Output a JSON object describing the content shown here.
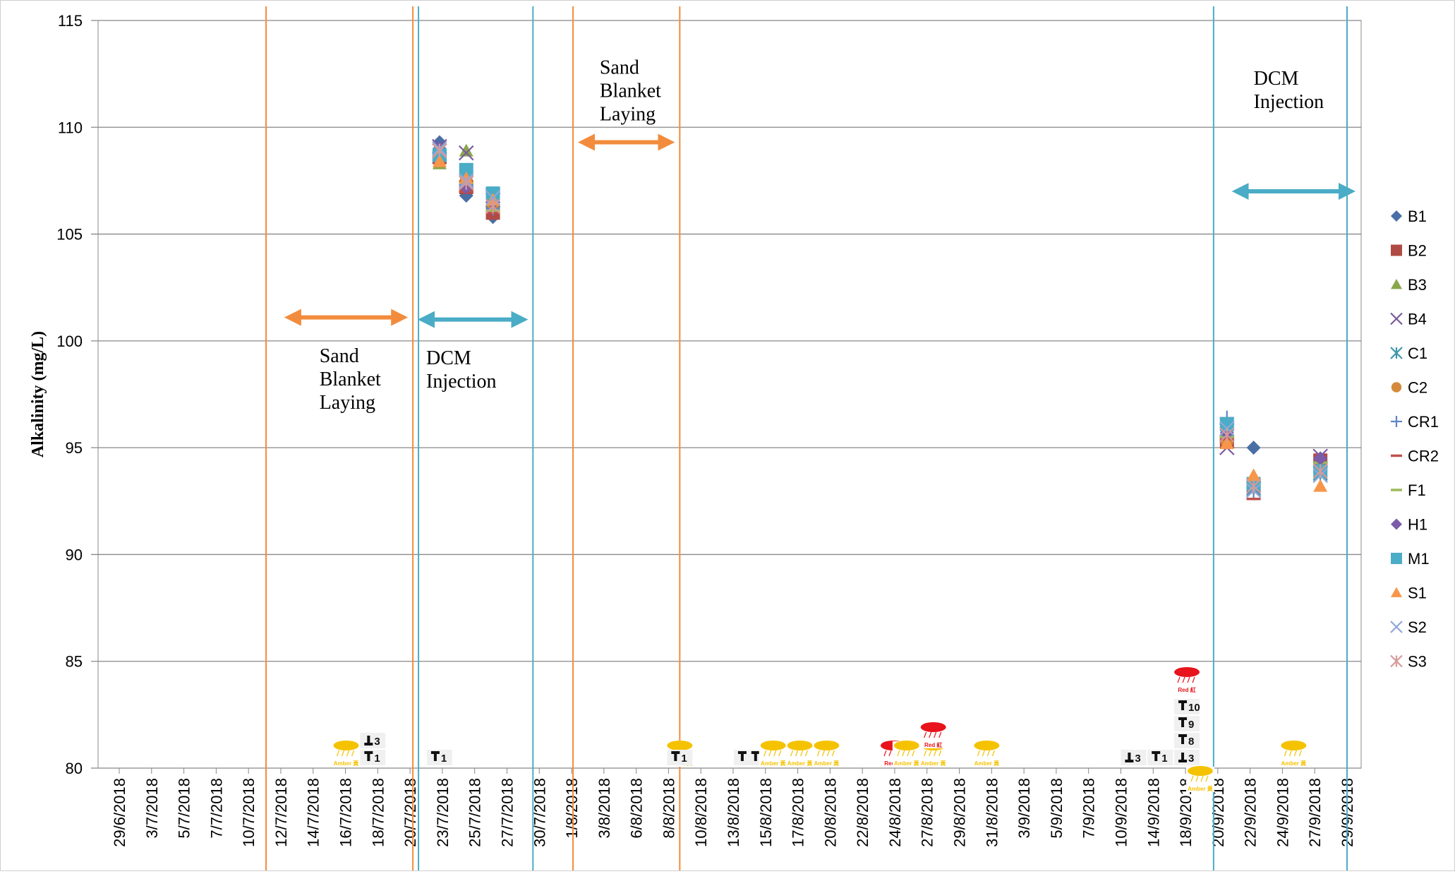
{
  "chart_data": {
    "type": "scatter",
    "ylabel": "Alkalinity (mg/L)",
    "ylim": [
      80,
      115
    ],
    "yticks": [
      80,
      85,
      90,
      95,
      100,
      105,
      110,
      115
    ],
    "x_range_dates": [
      "2018-06-29",
      "2018-09-29"
    ],
    "x_tick_labels": [
      "29/6/2018",
      "3/7/2018",
      "5/7/2018",
      "7/7/2018",
      "10/7/2018",
      "12/7/2018",
      "14/7/2018",
      "16/7/2018",
      "18/7/2018",
      "20/7/2018",
      "23/7/2018",
      "25/7/2018",
      "27/7/2018",
      "30/7/2018",
      "1/8/2018",
      "3/8/2018",
      "6/8/2018",
      "8/8/2018",
      "10/8/2018",
      "13/8/2018",
      "15/8/2018",
      "17/8/2018",
      "20/8/2018",
      "22/8/2018",
      "24/8/2018",
      "27/8/2018",
      "29/8/2018",
      "31/8/2018",
      "3/9/2018",
      "5/9/2018",
      "7/9/2018",
      "10/9/2018",
      "14/9/2018",
      "18/9/2018",
      "20/9/2018",
      "22/9/2018",
      "24/9/2018",
      "27/9/2018",
      "29/9/2018"
    ],
    "grid": true,
    "legend_position": "right",
    "series": [
      {
        "name": "B1",
        "marker": "diamond",
        "color": "#4a6fa5",
        "x": [
          "2018-07-23",
          "2018-07-25",
          "2018-07-27",
          "2018-09-20",
          "2018-09-22",
          "2018-09-27"
        ],
        "y": [
          109.3,
          106.8,
          105.8,
          95.6,
          95.0,
          94.1
        ]
      },
      {
        "name": "B2",
        "marker": "square",
        "color": "#b04a45",
        "x": [
          "2018-07-23",
          "2018-07-25",
          "2018-07-27",
          "2018-09-20",
          "2018-09-22",
          "2018-09-27"
        ],
        "y": [
          108.6,
          107.2,
          106.0,
          95.3,
          93.2,
          94.4
        ]
      },
      {
        "name": "B3",
        "marker": "triangle",
        "color": "#8aa64a",
        "x": [
          "2018-07-23",
          "2018-07-25",
          "2018-07-27",
          "2018-09-20",
          "2018-09-22",
          "2018-09-27"
        ],
        "y": [
          108.3,
          108.9,
          106.3,
          95.6,
          93.3,
          94.1
        ]
      },
      {
        "name": "B4",
        "marker": "x",
        "color": "#7a5a9e",
        "x": [
          "2018-07-23",
          "2018-07-25",
          "2018-07-27",
          "2018-09-20",
          "2018-09-22",
          "2018-09-27"
        ],
        "y": [
          109.1,
          108.8,
          106.8,
          95.0,
          93.0,
          94.6
        ]
      },
      {
        "name": "C1",
        "marker": "asterisk",
        "color": "#3f97ab",
        "x": [
          "2018-07-23",
          "2018-07-25",
          "2018-07-27",
          "2018-09-20",
          "2018-09-22",
          "2018-09-27"
        ],
        "y": [
          108.9,
          107.4,
          106.6,
          95.8,
          93.1,
          93.8
        ]
      },
      {
        "name": "C2",
        "marker": "circle",
        "color": "#d48a3c",
        "x": [
          "2018-07-23",
          "2018-07-25",
          "2018-07-27",
          "2018-09-20",
          "2018-09-22",
          "2018-09-27"
        ],
        "y": [
          108.5,
          107.6,
          106.4,
          95.3,
          93.3,
          94.0
        ]
      },
      {
        "name": "CR1",
        "marker": "plus",
        "color": "#5b86c4",
        "x": [
          "2018-07-23",
          "2018-07-25",
          "2018-07-27",
          "2018-09-20",
          "2018-09-22",
          "2018-09-27"
        ],
        "y": [
          108.8,
          107.3,
          106.2,
          96.4,
          92.9,
          93.9
        ]
      },
      {
        "name": "CR2",
        "marker": "dash",
        "color": "#c0504d",
        "x": [
          "2018-07-23",
          "2018-07-25",
          "2018-07-27",
          "2018-09-20",
          "2018-09-22",
          "2018-09-27"
        ],
        "y": [
          108.4,
          107.0,
          106.0,
          95.4,
          92.6,
          94.2
        ]
      },
      {
        "name": "F1",
        "marker": "dash",
        "color": "#9bbb59",
        "x": [
          "2018-07-23",
          "2018-07-25",
          "2018-07-27",
          "2018-09-20",
          "2018-09-22",
          "2018-09-27"
        ],
        "y": [
          108.6,
          107.4,
          106.1,
          95.5,
          93.4,
          94.3
        ]
      },
      {
        "name": "H1",
        "marker": "diamond",
        "color": "#7b5ca8",
        "x": [
          "2018-07-23",
          "2018-07-25",
          "2018-07-27",
          "2018-09-20",
          "2018-09-22",
          "2018-09-27"
        ],
        "y": [
          109.0,
          107.2,
          106.5,
          95.7,
          93.5,
          94.5
        ]
      },
      {
        "name": "M1",
        "marker": "square",
        "color": "#4aacc6",
        "x": [
          "2018-07-23",
          "2018-07-25",
          "2018-07-27",
          "2018-09-20",
          "2018-09-22",
          "2018-09-27"
        ],
        "y": [
          108.7,
          108.0,
          106.9,
          96.1,
          93.3,
          93.9
        ]
      },
      {
        "name": "S1",
        "marker": "triangle",
        "color": "#f7964a",
        "x": [
          "2018-07-23",
          "2018-07-25",
          "2018-07-27",
          "2018-09-20",
          "2018-09-22",
          "2018-09-27"
        ],
        "y": [
          108.4,
          107.6,
          106.6,
          95.2,
          93.7,
          93.2
        ]
      },
      {
        "name": "S2",
        "marker": "x",
        "color": "#8fa8d8",
        "x": [
          "2018-07-23",
          "2018-07-25",
          "2018-07-27",
          "2018-09-20",
          "2018-09-22",
          "2018-09-27"
        ],
        "y": [
          109.0,
          107.5,
          106.7,
          95.9,
          93.0,
          93.7
        ]
      },
      {
        "name": "S3",
        "marker": "asterisk",
        "color": "#d59a9a",
        "x": [
          "2018-07-23",
          "2018-07-25",
          "2018-07-27",
          "2018-09-20",
          "2018-09-22",
          "2018-09-27"
        ],
        "y": [
          108.9,
          107.4,
          106.3,
          95.6,
          93.2,
          93.9
        ]
      }
    ],
    "vertical_markers": [
      {
        "date": "2018-07-10",
        "color": "#f28c3c"
      },
      {
        "date": "2018-07-21",
        "color": "#f28c3c"
      },
      {
        "date": "2018-07-21",
        "color": "#4aacc6"
      },
      {
        "date": "2018-07-30",
        "color": "#4aacc6"
      },
      {
        "date": "2018-08-02",
        "color": "#f28c3c"
      },
      {
        "date": "2018-08-10",
        "color": "#f28c3c"
      },
      {
        "date": "2018-09-19",
        "color": "#4aacc6"
      },
      {
        "date": "2018-09-29",
        "color": "#4aacc6"
      }
    ],
    "arrows": [
      {
        "from": "2018-07-12",
        "to": "2018-07-20",
        "y": 101.1,
        "color": "#f28c3c"
      },
      {
        "from": "2018-07-22",
        "to": "2018-07-29",
        "y": 101.0,
        "color": "#4aacc6"
      },
      {
        "from": "2018-08-03",
        "to": "2018-08-09",
        "y": 109.3,
        "color": "#f28c3c"
      },
      {
        "from": "2018-09-21",
        "to": "2018-09-29",
        "y": 107.0,
        "color": "#4aacc6"
      }
    ],
    "annotations": [
      {
        "lines": [
          "Sand",
          "Blanket",
          "Laying"
        ],
        "x": "2018-07-14",
        "y": 99.0
      },
      {
        "lines": [
          "DCM",
          "Injection"
        ],
        "x": "2018-07-22",
        "y": 98.9
      },
      {
        "lines": [
          "Sand",
          "Blanket",
          "Laying"
        ],
        "x": "2018-08-04",
        "y": 112.5
      },
      {
        "lines": [
          "DCM",
          "Injection"
        ],
        "x": "2018-09-22",
        "y": 112.0
      }
    ],
    "weather_icons": [
      {
        "type": "amber",
        "date": "2018-07-16",
        "label": "Amber 黃"
      },
      {
        "type": "signal",
        "date": "2018-07-18",
        "label": "3",
        "pos": 1
      },
      {
        "type": "signal",
        "date": "2018-07-18",
        "label": "1",
        "pos": 0
      },
      {
        "type": "signal",
        "date": "2018-07-23",
        "label": "1",
        "pos": 0
      },
      {
        "type": "amber",
        "date": "2018-08-10",
        "label": "Amber 黃"
      },
      {
        "type": "signal",
        "date": "2018-08-10",
        "label": "1",
        "pos": 0
      },
      {
        "type": "signal",
        "date": "2018-08-15",
        "label": "1",
        "pos": 0
      },
      {
        "type": "signal",
        "date": "2018-08-16",
        "label": "1",
        "pos": 0
      },
      {
        "type": "amber",
        "date": "2018-08-17",
        "label": "Amber 黃"
      },
      {
        "type": "amber",
        "date": "2018-08-19",
        "label": "Amber 黃"
      },
      {
        "type": "amber",
        "date": "2018-08-21",
        "label": "Amber 黃"
      },
      {
        "type": "red",
        "date": "2018-08-26",
        "label": "Red 紅"
      },
      {
        "type": "amber",
        "date": "2018-08-27",
        "label": "Amber 黃"
      },
      {
        "type": "amber",
        "date": "2018-08-29",
        "label": "Amber 黃"
      },
      {
        "type": "red",
        "date": "2018-08-29",
        "label": "Red 紅",
        "pos": 1
      },
      {
        "type": "amber",
        "date": "2018-09-02",
        "label": "Amber 黃"
      },
      {
        "type": "signal",
        "date": "2018-09-13",
        "label": "3",
        "pos": 0
      },
      {
        "type": "signal",
        "date": "2018-09-15",
        "label": "1",
        "pos": 0
      },
      {
        "type": "signal",
        "date": "2018-09-17",
        "label": "3",
        "pos": 0
      },
      {
        "type": "signal",
        "date": "2018-09-17",
        "label": "8",
        "pos": 1
      },
      {
        "type": "signal",
        "date": "2018-09-17",
        "label": "9",
        "pos": 2
      },
      {
        "type": "signal",
        "date": "2018-09-17",
        "label": "10",
        "pos": 3
      },
      {
        "type": "red",
        "date": "2018-09-17",
        "label": "Red 紅",
        "pos": 4
      },
      {
        "type": "amber",
        "date": "2018-09-18",
        "label": "Amber 黃",
        "pos": -1
      },
      {
        "type": "amber",
        "date": "2018-09-25",
        "label": "Amber 黃"
      }
    ]
  },
  "colors": {
    "grid": "#888888",
    "orange": "#f28c3c",
    "teal": "#4aacc6",
    "amber": "#f5c200",
    "red": "#e8131b"
  }
}
